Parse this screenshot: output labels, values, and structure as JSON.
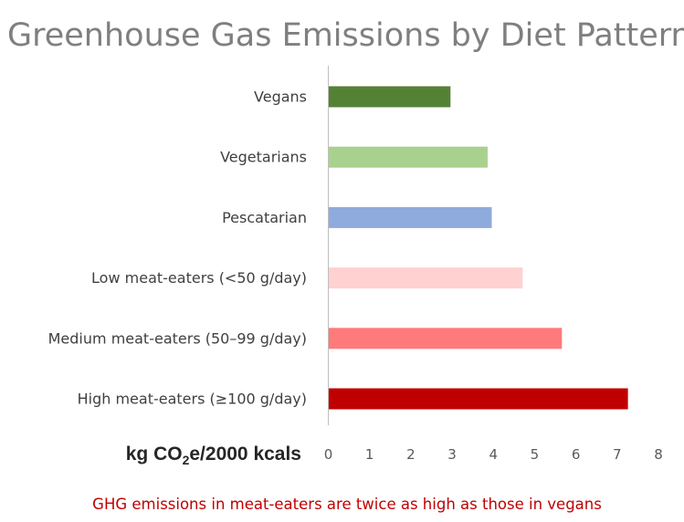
{
  "chart_data": {
    "type": "bar",
    "orientation": "horizontal",
    "title": "Greenhouse Gas Emissions by Diet Pattern",
    "categories": [
      "Vegans",
      "Vegetarians",
      "Pescatarian",
      "Low meat-eaters (<50 g/day)",
      "Medium meat-eaters (50–99 g/day)",
      "High meat-eaters (≥100 g/day)"
    ],
    "values": [
      2.95,
      3.85,
      3.95,
      4.7,
      5.65,
      7.25
    ],
    "colors": [
      "#548235",
      "#a9d18e",
      "#8faadc",
      "#ffd1d1",
      "#ff7a7a",
      "#c00000"
    ],
    "xlabel": {
      "prefix": "kg CO",
      "subscript": "2",
      "suffix": "e/2000 kcals"
    },
    "ylabel": "",
    "xlim": [
      0,
      8
    ],
    "xticks": [
      "0",
      "1",
      "2",
      "3",
      "4",
      "5",
      "6",
      "7",
      "8"
    ],
    "grid": false,
    "legend": "none"
  },
  "footnote": "GHG emissions in meat-eaters are twice as high as those in vegans"
}
